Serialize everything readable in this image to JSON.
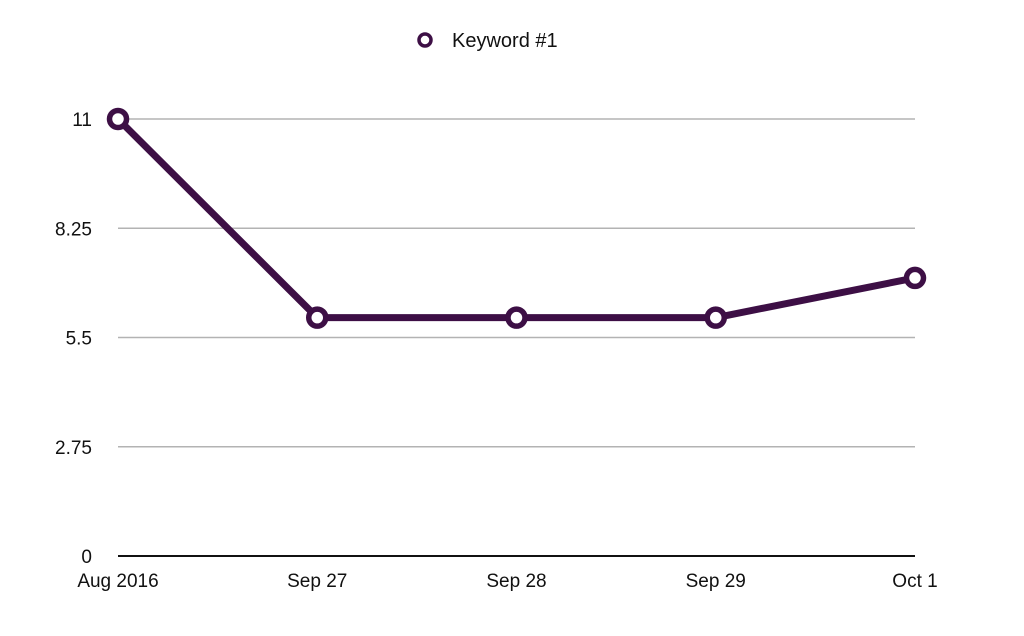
{
  "chart_data": {
    "type": "line",
    "categories": [
      "Aug 2016",
      "Sep 27",
      "Sep 28",
      "Sep 29",
      "Oct 1"
    ],
    "series": [
      {
        "name": "Keyword #1",
        "values": [
          11,
          6,
          6,
          6,
          7
        ],
        "color": "#3d0f45"
      }
    ],
    "yticks": [
      "0",
      "2.75",
      "5.5",
      "8.25",
      "11"
    ],
    "ylim": [
      0,
      11
    ],
    "grid": true,
    "legend_position": "top-center"
  }
}
